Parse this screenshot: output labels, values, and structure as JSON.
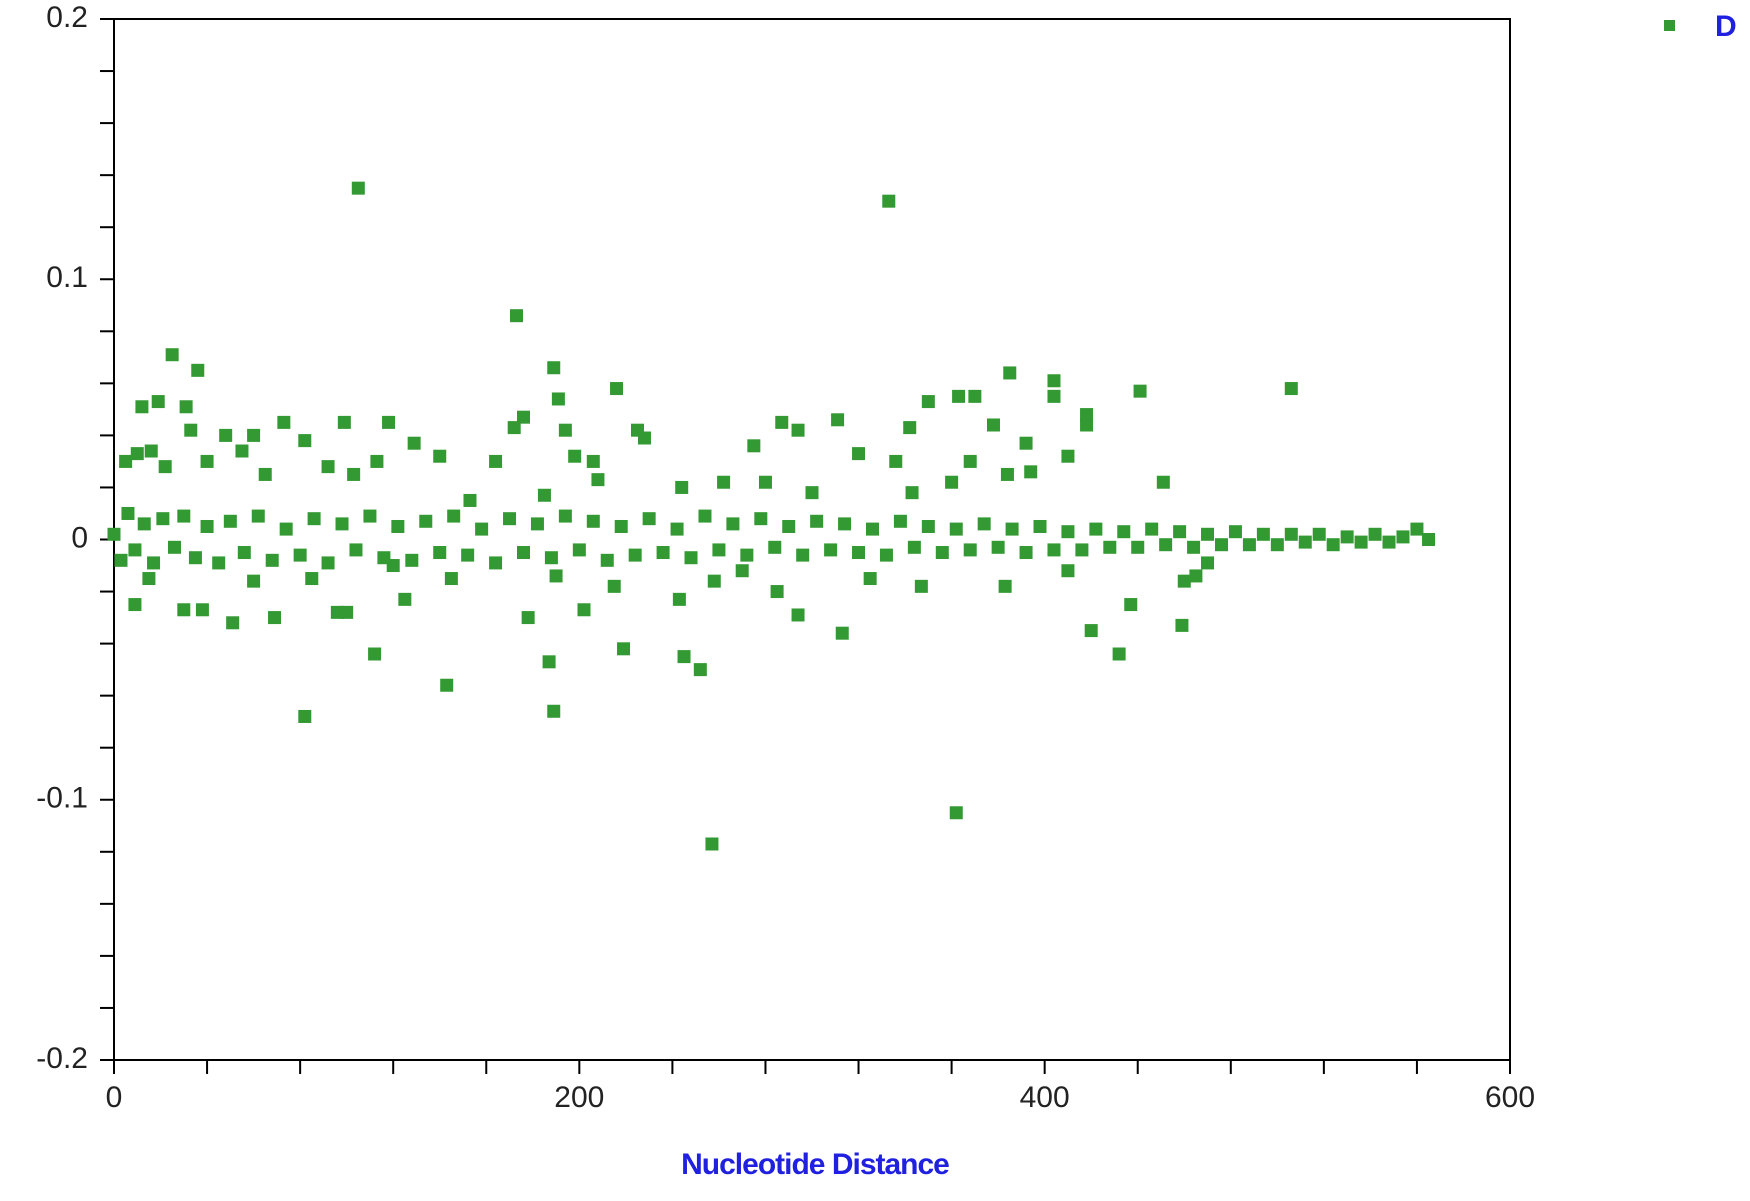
{
  "chart_data": {
    "type": "scatter",
    "x_label": "Nucleotide Distance",
    "xlim": [
      0,
      600
    ],
    "xticks": [
      0,
      200,
      400,
      600
    ],
    "xminorticks": [
      40,
      80,
      120,
      160,
      240,
      280,
      320,
      360,
      440,
      480,
      520,
      560
    ],
    "ylim": [
      -0.2,
      0.2
    ],
    "yticks": [
      0.2,
      0.1,
      0,
      -0.1,
      -0.2
    ],
    "yminorticks": [
      0.18,
      0.16,
      0.14,
      0.12,
      0.08,
      0.06,
      0.04,
      0.02,
      -0.02,
      -0.04,
      -0.06,
      -0.08,
      -0.12,
      -0.14,
      -0.16,
      -0.18
    ],
    "legend": "top-right",
    "marker": "square",
    "x": [
      105,
      333,
      173,
      189,
      25,
      36,
      216,
      506,
      385,
      404,
      404,
      441,
      363,
      370,
      350,
      191,
      19,
      31,
      12,
      418,
      418,
      176,
      118,
      99,
      73,
      311,
      287,
      342,
      294,
      378,
      225,
      228,
      194,
      172,
      33,
      48,
      60,
      82,
      129,
      392,
      410,
      394,
      451,
      164,
      198,
      206,
      208,
      244,
      262,
      275,
      280,
      300,
      320,
      336,
      343,
      360,
      368,
      384,
      5,
      10,
      16,
      22,
      40,
      55,
      65,
      92,
      103,
      113,
      140,
      153,
      185,
      257,
      362,
      82,
      189,
      252,
      143,
      187,
      245,
      219,
      112,
      432,
      459,
      420,
      313,
      437,
      294,
      9,
      30,
      38,
      51,
      69,
      100,
      96,
      125,
      178,
      202,
      243,
      285,
      347,
      383,
      465,
      460,
      325,
      258,
      145,
      85,
      60,
      15,
      470,
      410,
      270,
      215,
      190,
      120,
      0,
      3,
      6,
      9,
      13,
      17,
      21,
      26,
      30,
      35,
      40,
      45,
      50,
      56,
      62,
      68,
      74,
      80,
      86,
      92,
      98,
      104,
      110,
      116,
      122,
      128,
      134,
      140,
      146,
      152,
      158,
      164,
      170,
      176,
      182,
      188,
      194,
      200,
      206,
      212,
      218,
      224,
      230,
      236,
      242,
      248,
      254,
      260,
      266,
      272,
      278,
      284,
      290,
      296,
      302,
      308,
      314,
      320,
      326,
      332,
      338,
      344,
      350,
      356,
      362,
      368,
      374,
      380,
      386,
      392,
      398,
      404,
      410,
      416,
      422,
      428,
      434,
      440,
      446,
      452,
      458,
      464,
      470,
      476,
      482,
      488,
      494,
      500,
      506,
      512,
      518,
      524,
      530,
      536,
      542,
      548,
      554,
      560,
      565
    ],
    "series": [
      {
        "name": "D",
        "color": "#339933",
        "values": [
          0.135,
          0.13,
          0.086,
          0.066,
          0.071,
          0.065,
          0.058,
          0.058,
          0.064,
          0.061,
          0.055,
          0.057,
          0.055,
          0.055,
          0.053,
          0.054,
          0.053,
          0.051,
          0.051,
          0.048,
          0.044,
          0.047,
          0.045,
          0.045,
          0.045,
          0.046,
          0.045,
          0.043,
          0.042,
          0.044,
          0.042,
          0.039,
          0.042,
          0.043,
          0.042,
          0.04,
          0.04,
          0.038,
          0.037,
          0.037,
          0.032,
          0.026,
          0.022,
          0.03,
          0.032,
          0.03,
          0.023,
          0.02,
          0.022,
          0.036,
          0.022,
          0.018,
          0.033,
          0.03,
          0.018,
          0.022,
          0.03,
          0.025,
          0.03,
          0.033,
          0.034,
          0.028,
          0.03,
          0.034,
          0.025,
          0.028,
          0.025,
          0.03,
          0.032,
          0.015,
          0.017,
          -0.117,
          -0.105,
          -0.068,
          -0.066,
          -0.05,
          -0.056,
          -0.047,
          -0.045,
          -0.042,
          -0.044,
          -0.044,
          -0.033,
          -0.035,
          -0.036,
          -0.025,
          -0.029,
          -0.025,
          -0.027,
          -0.027,
          -0.032,
          -0.03,
          -0.028,
          -0.028,
          -0.023,
          -0.03,
          -0.027,
          -0.023,
          -0.02,
          -0.018,
          -0.018,
          -0.014,
          -0.016,
          -0.015,
          -0.016,
          -0.015,
          -0.015,
          -0.016,
          -0.015,
          -0.009,
          -0.012,
          -0.012,
          -0.018,
          -0.014,
          -0.01,
          0.002,
          -0.008,
          0.01,
          -0.004,
          0.006,
          -0.009,
          0.008,
          -0.003,
          0.009,
          -0.007,
          0.005,
          -0.009,
          0.007,
          -0.005,
          0.009,
          -0.008,
          0.004,
          -0.006,
          0.008,
          -0.009,
          0.006,
          -0.004,
          0.009,
          -0.007,
          0.005,
          -0.008,
          0.007,
          -0.005,
          0.009,
          -0.006,
          0.004,
          -0.009,
          0.008,
          -0.005,
          0.006,
          -0.007,
          0.009,
          -0.004,
          0.007,
          -0.008,
          0.005,
          -0.006,
          0.008,
          -0.005,
          0.004,
          -0.007,
          0.009,
          -0.004,
          0.006,
          -0.006,
          0.008,
          -0.003,
          0.005,
          -0.006,
          0.007,
          -0.004,
          0.006,
          -0.005,
          0.004,
          -0.006,
          0.007,
          -0.003,
          0.005,
          -0.005,
          0.004,
          -0.004,
          0.006,
          -0.003,
          0.004,
          -0.005,
          0.005,
          -0.004,
          0.003,
          -0.004,
          0.004,
          -0.003,
          0.003,
          -0.003,
          0.004,
          -0.002,
          0.003,
          -0.003,
          0.002,
          -0.002,
          0.003,
          -0.002,
          0.002,
          -0.002,
          0.002,
          -0.001,
          0.002,
          -0.002,
          0.001,
          -0.001,
          0.002,
          -0.001,
          0.001,
          0.004,
          0
        ]
      }
    ]
  }
}
